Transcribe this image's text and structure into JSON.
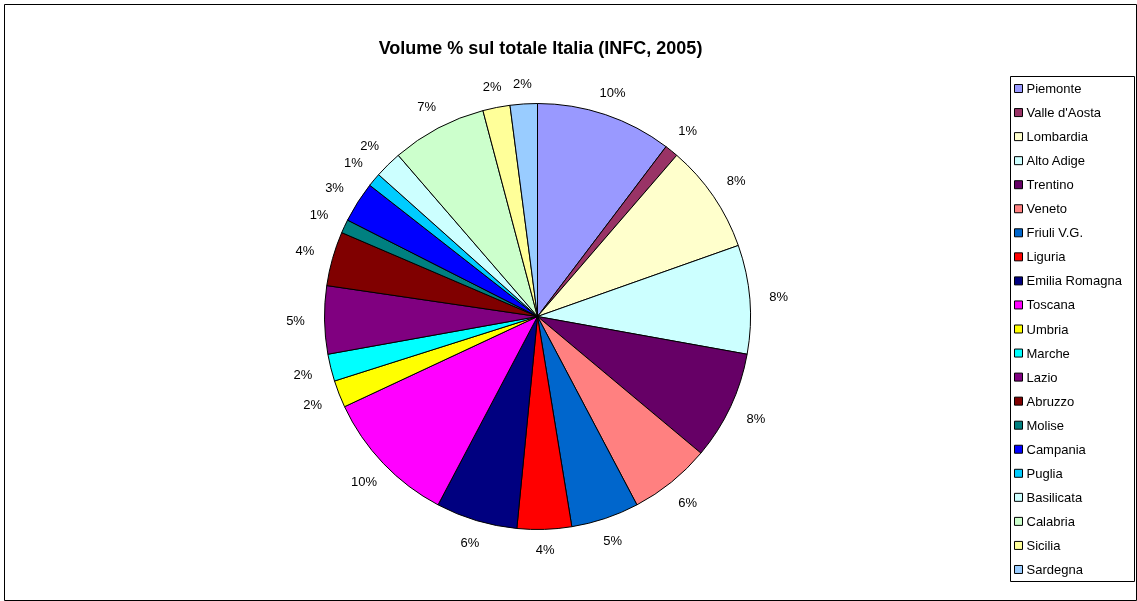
{
  "chart_data": {
    "type": "pie",
    "title": "Volume % sul totale Italia (INFC, 2005)",
    "categories": [
      "Piemonte",
      "Valle d'Aosta",
      "Lombardia",
      "Alto Adige",
      "Trentino",
      "Veneto",
      "Friuli V.G.",
      "Liguria",
      "Emilia Romagna",
      "Toscana",
      "Umbria",
      "Marche",
      "Lazio",
      "Abruzzo",
      "Molise",
      "Campania",
      "Puglia",
      "Basilicata",
      "Calabria",
      "Sicilia",
      "Sardegna"
    ],
    "values": [
      10,
      1,
      8,
      8,
      8,
      6,
      5,
      4,
      6,
      10,
      2,
      2,
      5,
      4,
      1,
      3,
      1,
      2,
      7,
      2,
      2
    ],
    "value_labels": [
      "10%",
      "1%",
      "8%",
      "8%",
      "8%",
      "6%",
      "5%",
      "4%",
      "6%",
      "10%",
      "2%",
      "2%",
      "5%",
      "4%",
      "1%",
      "3%",
      "1%",
      "2%",
      "7%",
      "2%",
      "2%"
    ],
    "colors": [
      "#9999ff",
      "#993366",
      "#ffffcc",
      "#ccffff",
      "#660066",
      "#ff8080",
      "#0066cc",
      "#ff0000",
      "#000080",
      "#ff00ff",
      "#ffff00",
      "#00ffff",
      "#800080",
      "#800000",
      "#008080",
      "#0000ff",
      "#00ccff",
      "#ccffff",
      "#ccffcc",
      "#ffff99",
      "#99ccff"
    ],
    "legend": "right"
  }
}
